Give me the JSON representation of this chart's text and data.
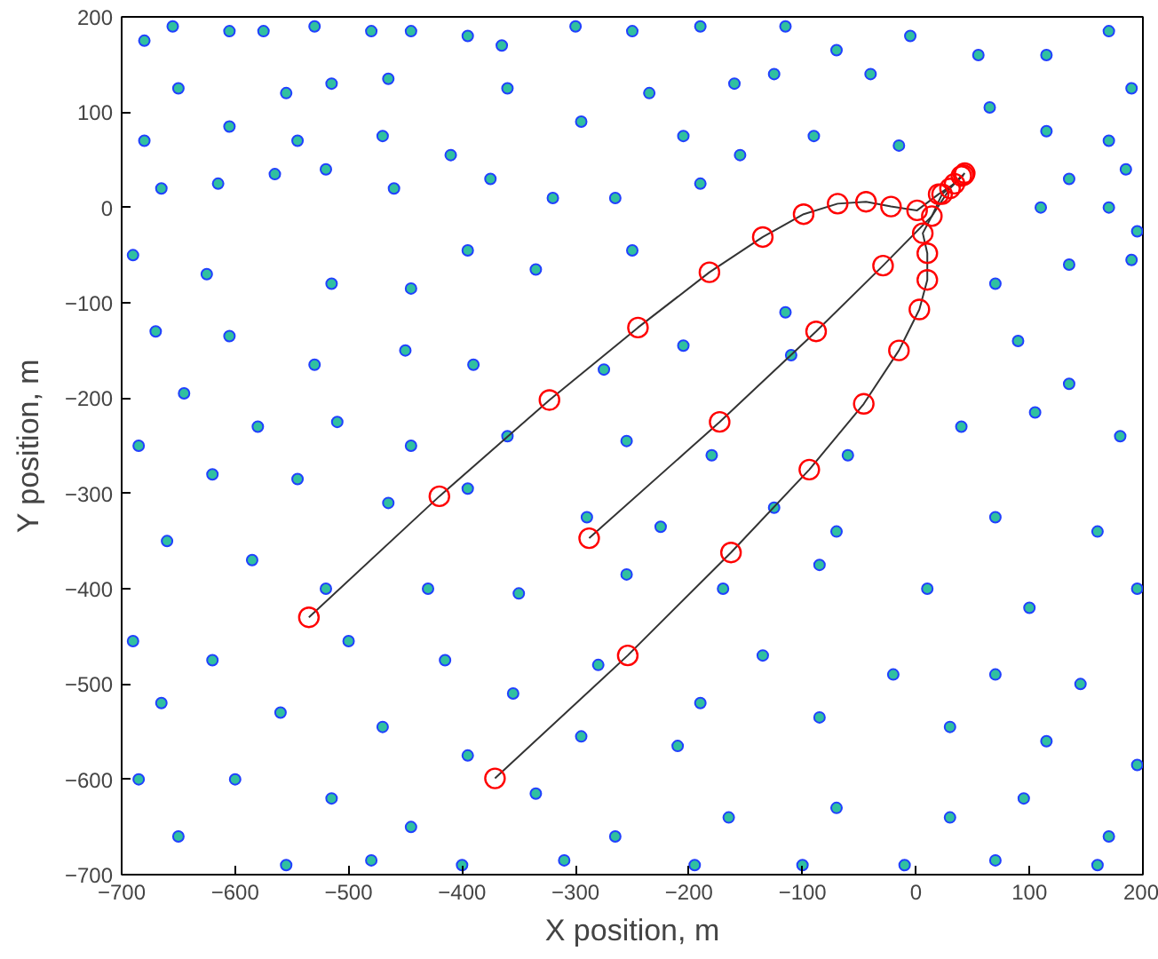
{
  "chart_data": {
    "type": "scatter",
    "xlabel": "X position, m",
    "ylabel": "Y position, m",
    "xlim": [
      -700,
      200
    ],
    "ylim": [
      -700,
      200
    ],
    "xticks": [
      -700,
      -600,
      -500,
      -400,
      -300,
      -200,
      -100,
      0,
      100,
      200
    ],
    "yticks": [
      -700,
      -600,
      -500,
      -400,
      -300,
      -200,
      -100,
      0,
      100,
      200
    ],
    "grid": false,
    "series": [
      {
        "marker": "circle",
        "color": "#30c0a0",
        "x": [
          -680,
          -655,
          -605,
          -575,
          -530,
          -480,
          -445,
          -395,
          -365,
          -300,
          -250,
          -190,
          -115,
          -70,
          -5,
          55,
          115,
          170,
          190,
          -650,
          -555,
          -515,
          -465,
          -360,
          -235,
          -160,
          -125,
          -40,
          65,
          115,
          170,
          -680,
          -605,
          -545,
          -470,
          -410,
          -295,
          -205,
          -155,
          -90,
          -15,
          135,
          185,
          -665,
          -615,
          -565,
          -520,
          -460,
          -375,
          -320,
          -265,
          -190,
          110,
          170,
          195,
          -690,
          -625,
          -515,
          -445,
          -395,
          -335,
          -250,
          -115,
          70,
          135,
          190,
          -670,
          -605,
          -530,
          -450,
          -390,
          -275,
          -205,
          -110,
          90,
          135,
          -645,
          -580,
          -510,
          -445,
          -360,
          -255,
          -180,
          -60,
          40,
          105,
          180,
          -685,
          -620,
          -545,
          -465,
          -395,
          -290,
          -225,
          -125,
          -70,
          70,
          160,
          -660,
          -585,
          -520,
          -430,
          -350,
          -255,
          -170,
          -85,
          10,
          100,
          195,
          -690,
          -620,
          -500,
          -415,
          -355,
          -280,
          -190,
          -135,
          -20,
          70,
          145,
          -665,
          -560,
          -470,
          -395,
          -295,
          -210,
          -85,
          30,
          115,
          195,
          -685,
          -600,
          -515,
          -445,
          -335,
          -265,
          -165,
          -70,
          30,
          95,
          170,
          -650,
          -555,
          -480,
          -400,
          -310,
          -195,
          -100,
          -10,
          70,
          160
        ],
        "values": [
          175,
          190,
          185,
          185,
          190,
          185,
          185,
          180,
          170,
          190,
          185,
          190,
          190,
          165,
          180,
          160,
          160,
          185,
          125,
          125,
          120,
          130,
          135,
          125,
          120,
          130,
          140,
          140,
          105,
          80,
          70,
          70,
          85,
          70,
          75,
          55,
          90,
          75,
          55,
          75,
          65,
          30,
          40,
          20,
          25,
          35,
          40,
          20,
          30,
          10,
          10,
          25,
          0,
          0,
          -25,
          -50,
          -70,
          -80,
          -85,
          -45,
          -65,
          -45,
          -110,
          -80,
          -60,
          -55,
          -130,
          -135,
          -165,
          -150,
          -165,
          -170,
          -145,
          -155,
          -140,
          -185,
          -195,
          -230,
          -225,
          -250,
          -240,
          -245,
          -260,
          -260,
          -230,
          -215,
          -240,
          -250,
          -280,
          -285,
          -310,
          -295,
          -325,
          -335,
          -315,
          -340,
          -325,
          -340,
          -350,
          -370,
          -400,
          -400,
          -405,
          -385,
          -400,
          -375,
          -400,
          -420,
          -400,
          -455,
          -475,
          -455,
          -475,
          -510,
          -480,
          -520,
          -470,
          -490,
          -490,
          -500,
          -520,
          -530,
          -545,
          -575,
          -555,
          -565,
          -535,
          -545,
          -560,
          -585,
          -600,
          -600,
          -620,
          -650,
          -615,
          -660,
          -640,
          -630,
          -640,
          -620,
          -660,
          -660,
          -690,
          -685,
          -690,
          -685,
          -690,
          -690,
          -690,
          -685,
          -690
        ]
      },
      {
        "type": "line",
        "marker": "none",
        "color": "#333333",
        "x": [
          -535,
          -420,
          -323,
          -245,
          -182,
          -135,
          -99,
          -69,
          -44,
          -22,
          1,
          20,
          34,
          43
        ],
        "values": [
          -430,
          -303,
          -202,
          -126,
          -68,
          -31,
          -7,
          4,
          6,
          1,
          -3,
          14,
          25,
          36
        ]
      },
      {
        "type": "line",
        "marker": "none",
        "color": "#333333",
        "x": [
          -288,
          -173,
          -88,
          -29,
          14,
          30,
          40
        ],
        "values": [
          -347,
          -225,
          -130,
          -61,
          -9,
          20,
          33
        ]
      },
      {
        "type": "line",
        "marker": "none",
        "color": "#333333",
        "x": [
          -371,
          -254,
          -163,
          -94,
          -46,
          -15,
          3,
          10,
          10,
          6,
          14,
          23,
          42
        ],
        "values": [
          -599,
          -470,
          -362,
          -275,
          -206,
          -150,
          -107,
          -76,
          -48,
          -27,
          -9,
          14,
          34
        ]
      },
      {
        "marker": "circle",
        "color": "#ff0000",
        "x": [
          -535,
          -420,
          -323,
          -245,
          -182,
          -135,
          -99,
          -69,
          -44,
          -22,
          1,
          20,
          34,
          43,
          -288,
          -173,
          -88,
          -29,
          14,
          30,
          40,
          -371,
          -254,
          -163,
          -94,
          -46,
          -15,
          3,
          10,
          10,
          6,
          23,
          42
        ],
        "values": [
          -430,
          -303,
          -202,
          -126,
          -68,
          -31,
          -7,
          4,
          6,
          1,
          -3,
          14,
          25,
          36,
          -347,
          -225,
          -130,
          -61,
          -9,
          20,
          33,
          -599,
          -470,
          -362,
          -275,
          -206,
          -150,
          -107,
          -76,
          -48,
          -27,
          14,
          34
        ]
      }
    ]
  }
}
